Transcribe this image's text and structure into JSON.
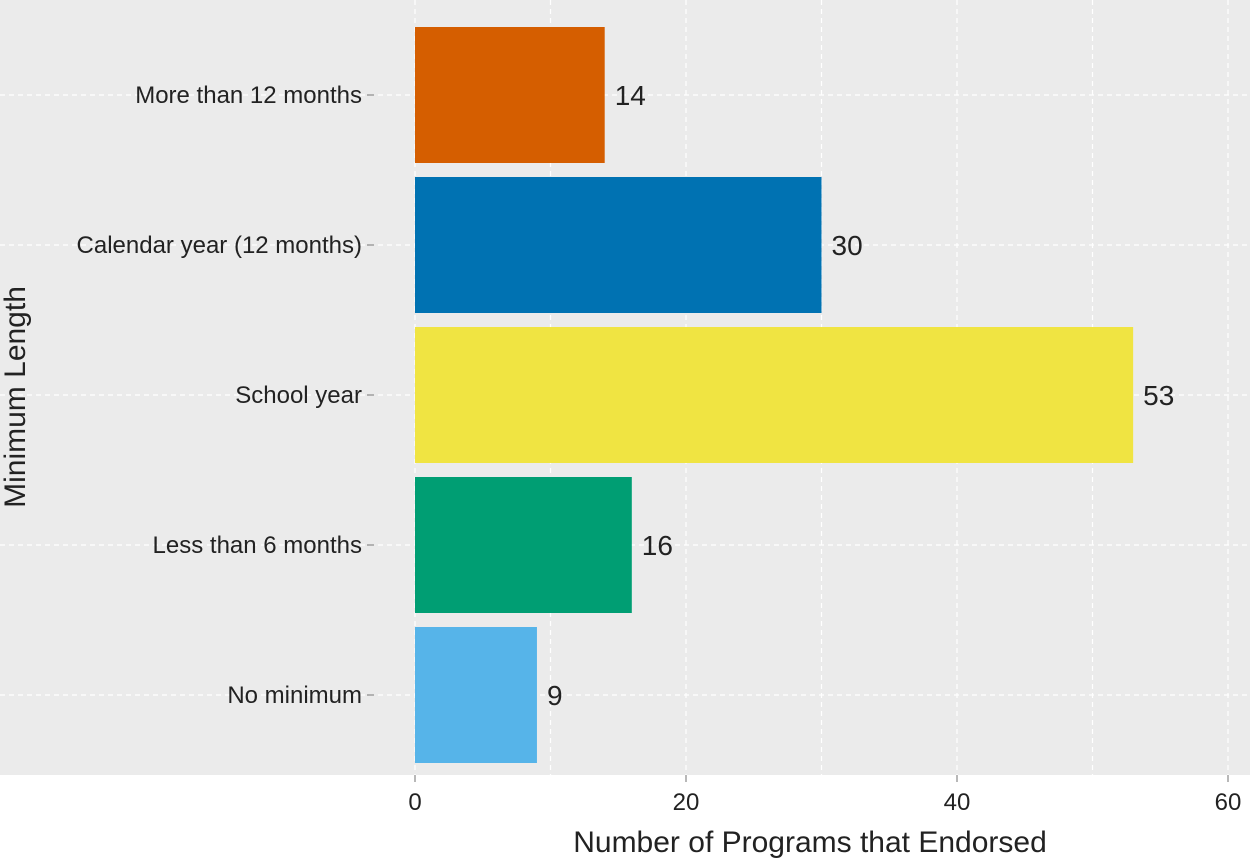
{
  "chart_data": {
    "type": "bar",
    "orientation": "horizontal",
    "title": "",
    "xlabel": "Number of Programs that Endorsed",
    "ylabel": "Minimum Length",
    "xlim": [
      0,
      60
    ],
    "xticks": [
      0,
      20,
      40,
      60
    ],
    "grid": true,
    "categories": [
      "No minimum",
      "Less than 6 months",
      "School year",
      "Calendar year (12 months)",
      "More than 12 months"
    ],
    "values": [
      9,
      16,
      53,
      30,
      14
    ],
    "colors": [
      "#56B4E9",
      "#009E73",
      "#F0E442",
      "#0072B2",
      "#D55E00"
    ],
    "data_labels": [
      "9",
      "16",
      "53",
      "30",
      "14"
    ]
  },
  "colors": {
    "panel_background": "#EBEBEB",
    "grid": "#FFFFFF",
    "text": "#222222"
  }
}
